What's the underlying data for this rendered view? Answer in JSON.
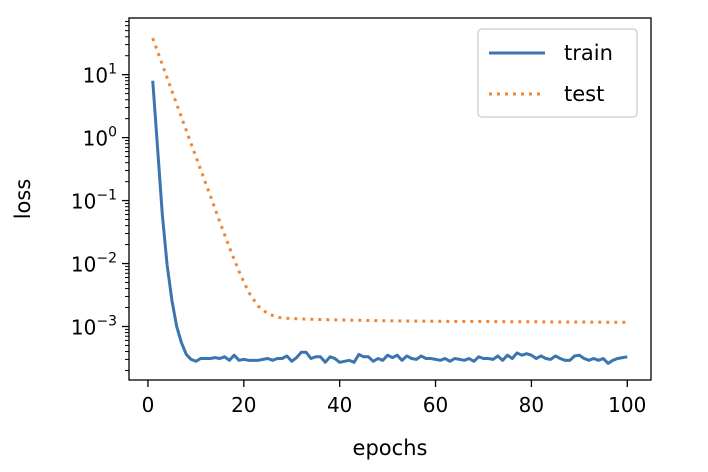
{
  "chart_data": {
    "type": "line",
    "title": "",
    "xlabel": "epochs",
    "ylabel": "loss",
    "yscale": "log",
    "xlim": [
      -3.95,
      104.95
    ],
    "ylim_log10": [
      -3.85,
      1.9
    ],
    "xticks": [
      0,
      20,
      40,
      60,
      80,
      100
    ],
    "xtick_labels": [
      "0",
      "20",
      "40",
      "60",
      "80",
      "100"
    ],
    "yticks_exponent": [
      1,
      0,
      -1,
      -2,
      -3
    ],
    "ytick_labels_base": [
      "10",
      "10",
      "10",
      "10",
      "10"
    ],
    "ytick_labels_exp": [
      "1",
      "0",
      "−1",
      "−2",
      "−3"
    ],
    "grid": false,
    "legend_position": "top-right",
    "series": [
      {
        "name": "train",
        "color": "#3b75af",
        "style": "solid",
        "x": [
          1,
          2,
          3,
          4,
          5,
          6,
          7,
          8,
          9,
          10,
          11,
          12,
          13,
          14,
          15,
          16,
          17,
          18,
          19,
          20,
          21,
          22,
          23,
          24,
          25,
          26,
          27,
          28,
          29,
          30,
          31,
          32,
          33,
          34,
          35,
          36,
          37,
          38,
          39,
          40,
          41,
          42,
          43,
          44,
          45,
          46,
          47,
          48,
          49,
          50,
          51,
          52,
          53,
          54,
          55,
          56,
          57,
          58,
          59,
          60,
          61,
          62,
          63,
          64,
          65,
          66,
          67,
          68,
          69,
          70,
          71,
          72,
          73,
          74,
          75,
          76,
          77,
          78,
          79,
          80,
          81,
          82,
          83,
          84,
          85,
          86,
          87,
          88,
          89,
          90,
          91,
          92,
          93,
          94,
          95,
          96,
          97,
          98,
          99,
          100
        ],
        "y": [
          8.0,
          0.7,
          0.06,
          0.0095,
          0.0026,
          0.001,
          0.00055,
          0.00036,
          0.0003,
          0.00028,
          0.00031,
          0.00031,
          0.00031,
          0.00032,
          0.00031,
          0.00033,
          0.00029,
          0.00035,
          0.00029,
          0.0003,
          0.00029,
          0.00029,
          0.00029,
          0.0003,
          0.00031,
          0.00029,
          0.00031,
          0.00031,
          0.00034,
          0.00028,
          0.00032,
          0.00039,
          0.00039,
          0.00031,
          0.00033,
          0.00033,
          0.00027,
          0.00033,
          0.00031,
          0.00027,
          0.00028,
          0.00029,
          0.00027,
          0.00036,
          0.00033,
          0.00033,
          0.00028,
          0.00031,
          0.00029,
          0.00035,
          0.00032,
          0.00035,
          0.00029,
          0.00034,
          0.00031,
          0.0003,
          0.00034,
          0.00031,
          0.00031,
          0.0003,
          0.00029,
          0.00031,
          0.00028,
          0.00031,
          0.0003,
          0.00029,
          0.00031,
          0.00028,
          0.00033,
          0.00031,
          0.00031,
          0.0003,
          0.00034,
          0.00029,
          0.00035,
          0.00031,
          0.00038,
          0.00035,
          0.00037,
          0.00035,
          0.00031,
          0.00034,
          0.00031,
          0.0003,
          0.00034,
          0.00031,
          0.00029,
          0.00029,
          0.00034,
          0.00035,
          0.00031,
          0.00029,
          0.00031,
          0.00029,
          0.00031,
          0.00026,
          0.00029,
          0.00031,
          0.00032,
          0.00033
        ]
      },
      {
        "name": "test",
        "color": "#ef8636",
        "style": "dotted",
        "x": [
          1,
          3,
          5,
          7,
          9,
          11,
          13,
          15,
          17,
          19,
          21,
          23,
          25,
          27,
          29,
          31,
          33,
          36,
          40,
          45,
          50,
          55,
          60,
          65,
          70,
          75,
          80,
          85,
          90,
          95,
          100
        ],
        "y": [
          38,
          14.5,
          5.5,
          2.1,
          0.8,
          0.31,
          0.12,
          0.046,
          0.018,
          0.0075,
          0.0035,
          0.0021,
          0.0016,
          0.0014,
          0.00135,
          0.00133,
          0.00131,
          0.00129,
          0.00127,
          0.00125,
          0.00123,
          0.00122,
          0.00121,
          0.0012,
          0.0012,
          0.00119,
          0.00119,
          0.00118,
          0.00118,
          0.00117,
          0.00117
        ]
      }
    ]
  }
}
